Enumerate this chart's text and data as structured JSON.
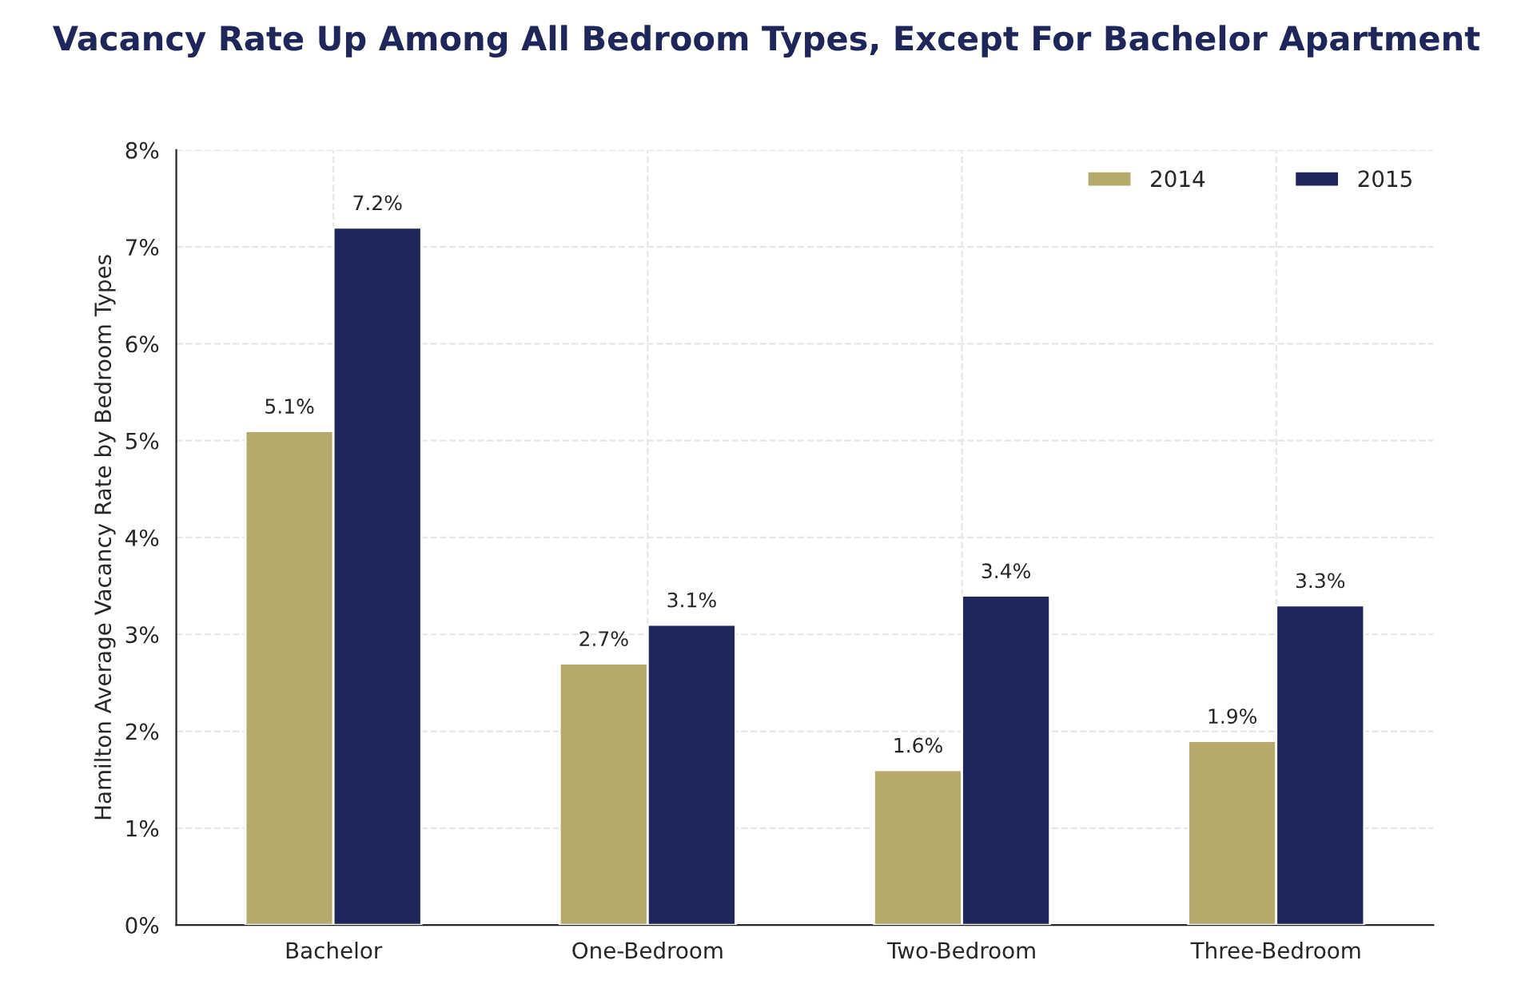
{
  "chart_data": {
    "type": "bar",
    "title": "Vacancy Rate Up Among All Bedroom Types, Except For Bachelor Apartment",
    "ylabel": "Hamilton Average Vacancy Rate by Bedroom Types",
    "categories": [
      "Bachelor",
      "One-Bedroom",
      "Two-Bedroom",
      "Three-Bedroom"
    ],
    "series": [
      {
        "name": "2014",
        "color": "#b5a96b",
        "values": [
          5.1,
          2.7,
          1.6,
          1.9
        ],
        "value_labels": [
          "5.1%",
          "2.7%",
          "1.6%",
          "1.9%"
        ]
      },
      {
        "name": "2015",
        "color": "#1f2659",
        "values": [
          7.2,
          3.1,
          3.4,
          3.3
        ],
        "value_labels": [
          "7.2%",
          "3.1%",
          "3.4%",
          "3.3%"
        ]
      }
    ],
    "ylim": [
      0,
      8
    ],
    "yticks": [
      {
        "value": 0,
        "label": "0%"
      },
      {
        "value": 1,
        "label": "1%"
      },
      {
        "value": 2,
        "label": "2%"
      },
      {
        "value": 3,
        "label": "3%"
      },
      {
        "value": 4,
        "label": "4%"
      },
      {
        "value": 5,
        "label": "5%"
      },
      {
        "value": 6,
        "label": "6%"
      },
      {
        "value": 7,
        "label": "7%"
      },
      {
        "value": 8,
        "label": "8%"
      }
    ],
    "grid": true,
    "legend": "top right"
  }
}
